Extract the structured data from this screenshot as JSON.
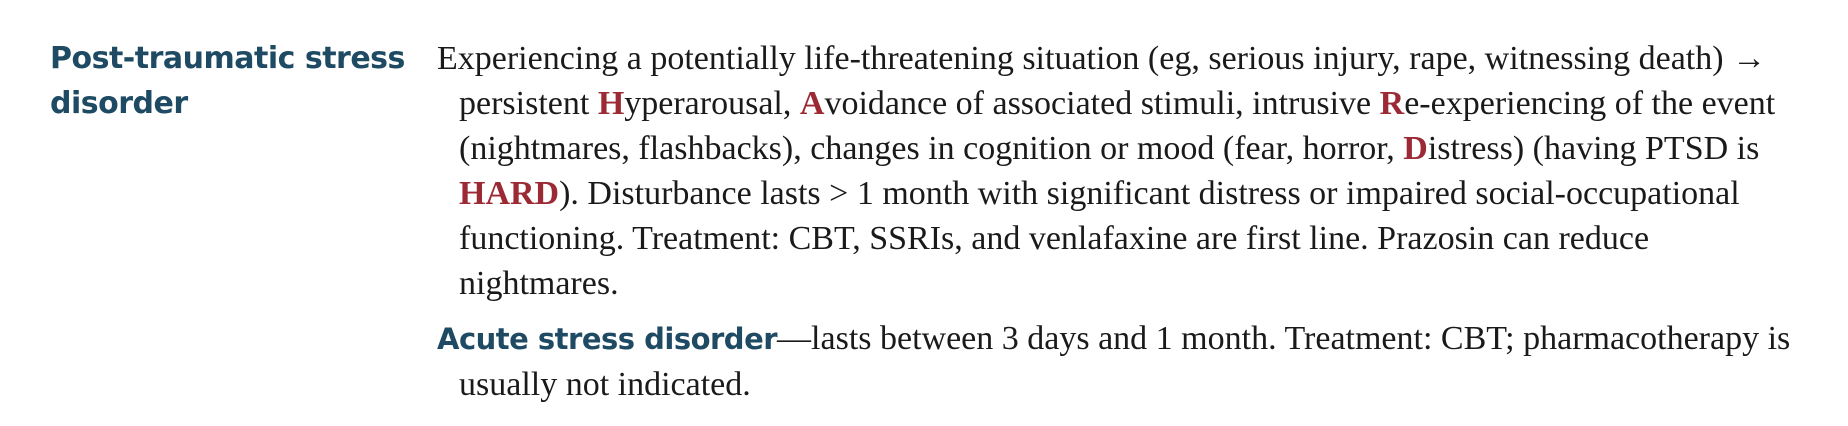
{
  "entry": {
    "term": "Post-traumatic stress disorder",
    "paragraph1": {
      "s1": "Experiencing a potentially life-threatening situation (eg, serious injury, rape, witnessing death) ",
      "arrow": "→",
      "s2": " persistent ",
      "h": "H",
      "s3": "yperarousal, ",
      "a": "A",
      "s4": "voidance of associated stimuli, intrusive ",
      "r": "R",
      "s5": "e-experiencing of the event (nightmares, flashbacks), changes in cognition or mood (fear, horror, ",
      "d": "D",
      "s6": "istress) (having PTSD is ",
      "hard": "HARD",
      "s7": "). Disturbance lasts > 1 month with significant distress or impaired social-occupational functioning. Treatment: CBT, SSRIs, and venlafaxine are first line. Prazosin can reduce nightmares."
    },
    "paragraph2": {
      "subterm": "Acute stress disorder",
      "text": "—lasts between 3 days and 1 month. Treatment: CBT; pharmacotherapy is usually not indicated."
    }
  }
}
